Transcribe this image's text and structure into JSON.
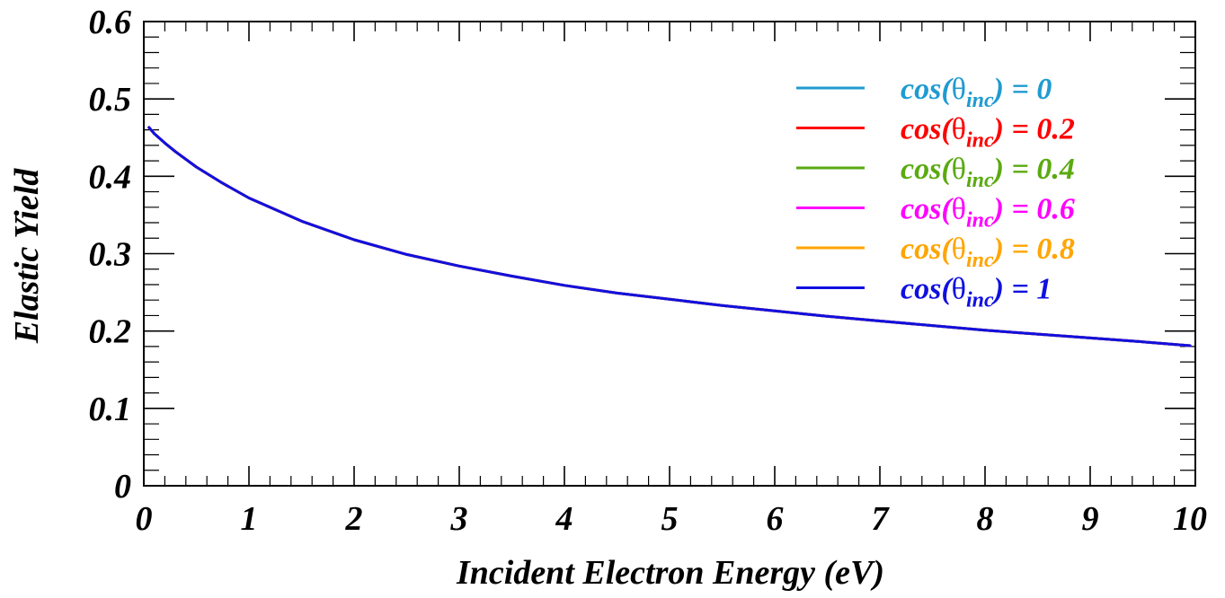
{
  "chart_data": {
    "type": "line",
    "xlabel": "Incident Electron Energy (eV)",
    "ylabel": "Elastic Yield",
    "xlim": [
      0,
      10
    ],
    "ylim": [
      0,
      0.6
    ],
    "x_ticks": [
      "0",
      "1",
      "2",
      "3",
      "4",
      "5",
      "6",
      "7",
      "8",
      "9",
      "10"
    ],
    "y_ticks": [
      "0",
      "0.1",
      "0.2",
      "0.3",
      "0.4",
      "0.5",
      "0.6"
    ],
    "grid": false,
    "legend_position": "top-right",
    "x": [
      0.05,
      0.1,
      0.2,
      0.3,
      0.5,
      0.75,
      1,
      1.5,
      2,
      2.5,
      3,
      3.5,
      4,
      4.5,
      5,
      5.5,
      6,
      6.5,
      7,
      7.5,
      8,
      8.5,
      9,
      9.5,
      9.95
    ],
    "series": [
      {
        "name": "cos(θinc) = 0",
        "legend": {
          "prefix": "cos(",
          "theta": "θ",
          "sub": "inc",
          "suffix": ") = 0"
        },
        "color": "#1f9bd0",
        "values": [
          0.463,
          0.455,
          0.443,
          0.432,
          0.412,
          0.391,
          0.372,
          0.342,
          0.318,
          0.299,
          0.284,
          0.271,
          0.259,
          0.249,
          0.241,
          0.233,
          0.226,
          0.219,
          0.213,
          0.207,
          0.201,
          0.196,
          0.191,
          0.186,
          0.181
        ]
      },
      {
        "name": "cos(θinc) = 0.2",
        "legend": {
          "prefix": "cos(",
          "theta": "θ",
          "sub": "inc",
          "suffix": ") = 0.2"
        },
        "color": "#ff0000",
        "values": [
          0.463,
          0.455,
          0.443,
          0.432,
          0.412,
          0.391,
          0.372,
          0.342,
          0.318,
          0.299,
          0.284,
          0.271,
          0.259,
          0.249,
          0.241,
          0.233,
          0.226,
          0.219,
          0.213,
          0.207,
          0.201,
          0.196,
          0.191,
          0.186,
          0.181
        ]
      },
      {
        "name": "cos(θinc) = 0.4",
        "legend": {
          "prefix": "cos(",
          "theta": "θ",
          "sub": "inc",
          "suffix": ") = 0.4"
        },
        "color": "#5aaa10",
        "values": [
          0.463,
          0.455,
          0.443,
          0.432,
          0.412,
          0.391,
          0.372,
          0.342,
          0.318,
          0.299,
          0.284,
          0.271,
          0.259,
          0.249,
          0.241,
          0.233,
          0.226,
          0.219,
          0.213,
          0.207,
          0.201,
          0.196,
          0.191,
          0.186,
          0.181
        ]
      },
      {
        "name": "cos(θinc) = 0.6",
        "legend": {
          "prefix": "cos(",
          "theta": "θ",
          "sub": "inc",
          "suffix": ") = 0.6"
        },
        "color": "#ff00ff",
        "values": [
          0.463,
          0.455,
          0.443,
          0.432,
          0.412,
          0.391,
          0.372,
          0.342,
          0.318,
          0.299,
          0.284,
          0.271,
          0.259,
          0.249,
          0.241,
          0.233,
          0.226,
          0.219,
          0.213,
          0.207,
          0.201,
          0.196,
          0.191,
          0.186,
          0.181
        ]
      },
      {
        "name": "cos(θinc) = 0.8",
        "legend": {
          "prefix": "cos(",
          "theta": "θ",
          "sub": "inc",
          "suffix": ") = 0.8"
        },
        "color": "#ffa500",
        "values": [
          0.463,
          0.455,
          0.443,
          0.432,
          0.412,
          0.391,
          0.372,
          0.342,
          0.318,
          0.299,
          0.284,
          0.271,
          0.259,
          0.249,
          0.241,
          0.233,
          0.226,
          0.219,
          0.213,
          0.207,
          0.201,
          0.196,
          0.191,
          0.186,
          0.181
        ]
      },
      {
        "name": "cos(θinc) = 1",
        "legend": {
          "prefix": "cos(",
          "theta": "θ",
          "sub": "inc",
          "suffix": ") = 1"
        },
        "color": "#1010e0",
        "values": [
          0.463,
          0.455,
          0.443,
          0.432,
          0.412,
          0.391,
          0.372,
          0.342,
          0.318,
          0.299,
          0.284,
          0.271,
          0.259,
          0.249,
          0.241,
          0.233,
          0.226,
          0.219,
          0.213,
          0.207,
          0.201,
          0.196,
          0.191,
          0.186,
          0.181
        ]
      }
    ]
  }
}
